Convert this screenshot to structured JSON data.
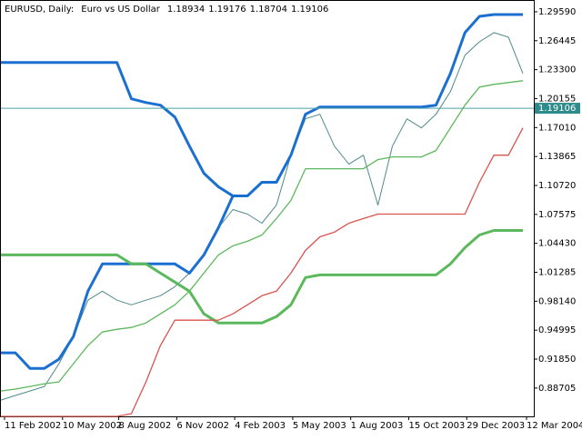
{
  "chart_data": {
    "type": "line",
    "header": {
      "symbol": "EURUSD, Daily:",
      "description": "Euro vs US Dollar",
      "ohlc": [
        1.18934,
        1.19176,
        1.18704,
        1.19106
      ]
    },
    "current_price": 1.19106,
    "x": [
      0,
      16,
      32,
      48,
      64,
      80,
      96,
      112,
      128,
      144,
      160,
      176,
      192,
      208,
      224,
      240,
      256,
      272,
      288,
      304,
      320,
      336,
      352,
      368,
      384,
      400,
      416,
      432,
      448,
      464,
      480,
      496,
      512,
      528,
      544,
      560,
      576
    ],
    "xlim": [
      0,
      588
    ],
    "xticks": [
      {
        "value": 4,
        "label": "11 Feb 2002"
      },
      {
        "value": 68,
        "label": "10 May 2002"
      },
      {
        "value": 130,
        "label": "8 Aug 2002"
      },
      {
        "value": 194,
        "label": "6 Nov 2002"
      },
      {
        "value": 258,
        "label": "4 Feb 2003"
      },
      {
        "value": 322,
        "label": "5 May 2003"
      },
      {
        "value": 386,
        "label": "1 Aug 2003"
      },
      {
        "value": 450,
        "label": "15 Oct 2003"
      },
      {
        "value": 514,
        "label": "29 Dec 2003"
      },
      {
        "value": 580,
        "label": "12 Mar 2004"
      }
    ],
    "ylim": [
      0.8563,
      1.3077
    ],
    "yticks": [
      {
        "value": 1.2959,
        "label": "1.29590"
      },
      1.26445,
      {
        "value": 1.233,
        "label": "1.23300"
      },
      1.20155,
      {
        "value": 1.1701,
        "label": "1.17010"
      },
      1.13865,
      {
        "value": 1.1072,
        "label": "1.10720"
      },
      1.07575,
      {
        "value": 1.0443,
        "label": "1.04430"
      },
      1.01285,
      {
        "value": 0.9814,
        "label": "0.98140"
      },
      0.94995,
      {
        "value": 0.9185,
        "label": "0.91850"
      },
      0.88705
    ],
    "series": [
      {
        "color": "#4f8a8a",
        "values": [
          0.874,
          0.879,
          0.8839,
          0.8888,
          0.9135,
          0.943,
          0.9825,
          0.9923,
          0.9825,
          0.9775,
          0.9825,
          0.9874,
          0.9972,
          1.012,
          1.0317,
          1.0613,
          1.081,
          1.0761,
          1.0662,
          1.0859,
          1.1401,
          1.1796,
          1.1845,
          1.15,
          1.1303,
          1.1401,
          1.0859,
          1.15,
          1.1796,
          1.1697,
          1.1845,
          1.2091,
          1.2486,
          1.2633,
          1.2732,
          1.2683,
          1.2289
        ]
      },
      {
        "color": "#1a6fd0",
        "values": [
          1.2407,
          1.2407,
          1.2407,
          1.2407,
          1.2407,
          1.2407,
          1.2407,
          1.2407,
          1.2407,
          1.2013,
          1.1973,
          1.1944,
          1.1815,
          1.15,
          1.1204,
          1.1057,
          1.0958,
          1.0958,
          1.1106,
          1.1106,
          1.1401,
          1.1845,
          1.1924,
          1.1924,
          1.1924,
          1.1924,
          1.1924,
          1.1924,
          1.1924,
          1.1924,
          1.1944,
          1.2289,
          1.2732,
          1.2909,
          1.2929,
          1.2929,
          1.2929
        ]
      },
      {
        "color": "#1a6fd0",
        "values": [
          0.9253,
          0.9253,
          0.9085,
          0.9085,
          0.9184,
          0.943,
          0.9923,
          1.0219,
          1.0219,
          1.0219,
          1.0219,
          1.0219,
          1.0219,
          1.012,
          1.0317,
          1.0613,
          1.0958,
          null,
          null,
          null,
          null,
          null,
          null,
          null,
          null,
          null,
          null,
          null,
          null,
          null,
          null,
          null,
          null,
          null,
          null,
          null,
          null
        ]
      },
      {
        "color": "#5cb85c",
        "values": [
          1.0317,
          1.0317,
          1.0317,
          1.0317,
          1.0317,
          1.0317,
          1.0317,
          1.0317,
          1.0317,
          1.0219,
          1.0219,
          1.012,
          1.0022,
          0.9923,
          0.9677,
          0.9578,
          0.9578,
          0.9578,
          0.9578,
          0.9647,
          0.9775,
          1.0071,
          1.01,
          1.01,
          1.01,
          1.01,
          1.01,
          1.01,
          1.01,
          1.01,
          1.01,
          1.0219,
          1.0396,
          1.0534,
          1.0583,
          1.0583,
          1.0583
        ]
      },
      {
        "color": "#5cb85c",
        "values": [
          0.8839,
          0.8859,
          0.8888,
          0.8918,
          0.8937,
          0.9135,
          0.9332,
          0.948,
          0.9509,
          0.9529,
          0.9578,
          0.9677,
          0.9775,
          0.9923,
          1.012,
          1.0317,
          1.0416,
          1.0465,
          1.0534,
          1.0712,
          1.0909,
          1.1254,
          1.1254,
          1.1254,
          1.1254,
          1.1254,
          1.1352,
          1.1382,
          1.1382,
          1.1382,
          1.1451,
          1.1697,
          1.1944,
          1.2141,
          1.217,
          1.219,
          1.221
        ]
      },
      {
        "color": "#d9534f",
        "values": [
          0.8563,
          0.8563,
          0.8563,
          0.8563,
          0.8563,
          0.8563,
          0.8563,
          0.8563,
          0.8563,
          0.8593,
          0.8937,
          0.9332,
          0.9608,
          0.9608,
          0.9608,
          0.9608,
          0.9677,
          0.9775,
          0.9874,
          0.9923,
          1.012,
          1.0366,
          1.0514,
          1.0564,
          1.0662,
          1.0712,
          1.0761,
          1.0761,
          1.0761,
          1.0761,
          1.0761,
          1.0761,
          1.0761,
          1.1106,
          1.1401,
          1.1401,
          1.1697
        ]
      }
    ]
  }
}
